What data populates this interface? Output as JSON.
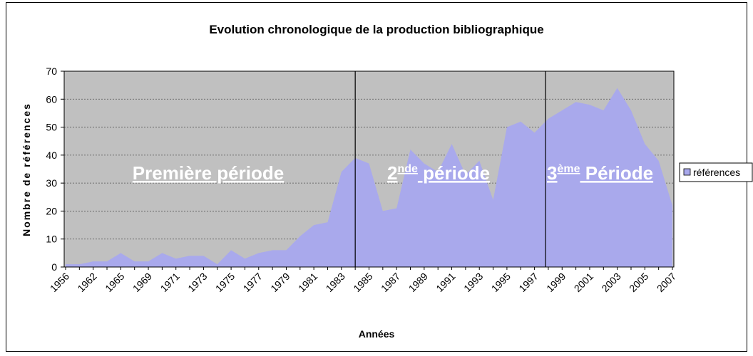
{
  "chart_data": {
    "type": "area",
    "title": "Evolution chronologique de la production bibliographique",
    "x_label": "Années",
    "y_label": "Nombre de références",
    "categories": [
      "1956",
      null,
      "1962",
      null,
      "1965",
      null,
      "1969",
      null,
      "1971",
      null,
      "1973",
      null,
      "1975",
      null,
      "1977",
      null,
      "1979",
      null,
      "1981",
      null,
      "1983",
      null,
      "1985",
      null,
      "1987",
      null,
      "1989",
      null,
      "1991",
      null,
      "1993",
      null,
      "1995",
      null,
      "1997",
      null,
      "1999",
      null,
      "2001",
      null,
      "2003",
      null,
      "2005",
      null,
      "2007"
    ],
    "series": [
      {
        "name": "références",
        "color": "#a9a9ec",
        "values": [
          1,
          1,
          2,
          2,
          5,
          2,
          2,
          5,
          3,
          4,
          4,
          1,
          6,
          3,
          5,
          6,
          6,
          11,
          15,
          16,
          34,
          39,
          37,
          20,
          21,
          42,
          37,
          34,
          44,
          33,
          38,
          24,
          50,
          52,
          48,
          53,
          56,
          59,
          58,
          56,
          64,
          56,
          44,
          38,
          22
        ]
      }
    ],
    "ylim": [
      0,
      70
    ],
    "yticks": [
      0,
      10,
      20,
      30,
      40,
      50,
      60,
      70
    ],
    "grid": true,
    "legend": "right",
    "period_boundaries": [
      21,
      34.8
    ],
    "annotations": [
      {
        "text": "Première période"
      },
      {
        "base": "2",
        "sup": "nde",
        "rest": " période"
      },
      {
        "base": "3",
        "sup": "ème",
        "rest": " Période"
      }
    ]
  }
}
